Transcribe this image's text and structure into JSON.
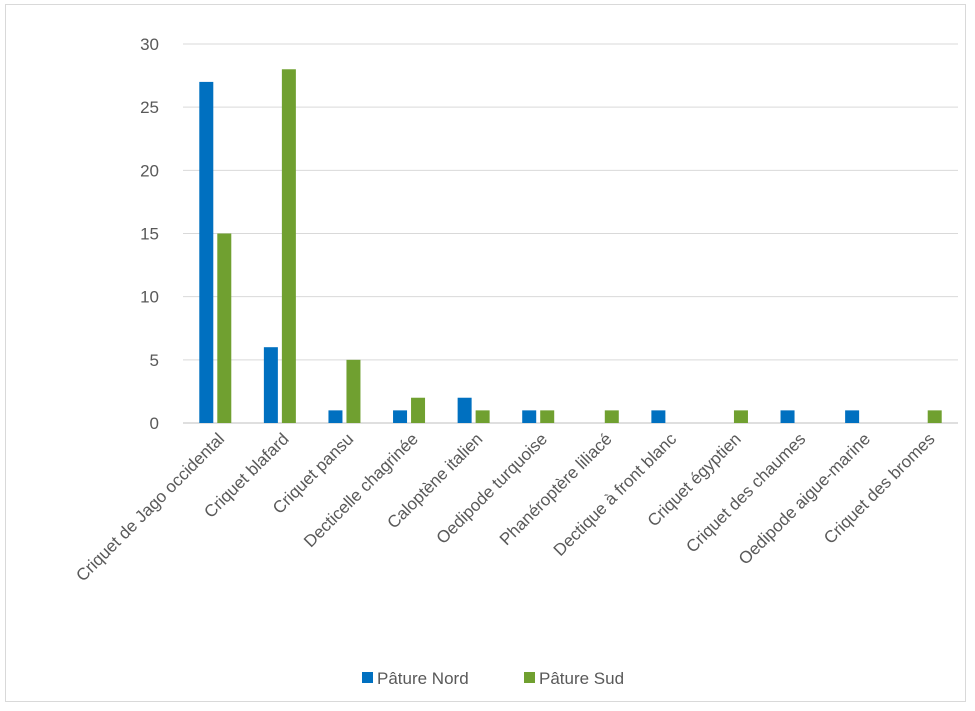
{
  "chart_data": {
    "type": "bar",
    "categories": [
      "Criquet de Jago occidental",
      "Criquet blafard",
      "Criquet pansu",
      "Decticelle chagrinée",
      "Caloptène italien",
      "Oedipode turquoise",
      "Phanéroptère liliacé",
      "Dectique à front blanc",
      "Criquet égyptien",
      "Criquet des chaumes",
      "Oedipode aigue-marine",
      "Criquet des bromes"
    ],
    "series": [
      {
        "name": "Pâture Nord",
        "color": "#0070c0",
        "values": [
          27,
          6,
          1,
          1,
          2,
          1,
          0,
          1,
          0,
          1,
          1,
          0
        ]
      },
      {
        "name": "Pâture Sud",
        "color": "#70a030",
        "values": [
          15,
          28,
          5,
          2,
          1,
          1,
          1,
          0,
          1,
          0,
          0,
          1
        ]
      }
    ],
    "ylim": [
      0,
      30
    ],
    "yticks": [
      0,
      5,
      10,
      15,
      20,
      25,
      30
    ],
    "grid": true,
    "legend": "bottom"
  }
}
